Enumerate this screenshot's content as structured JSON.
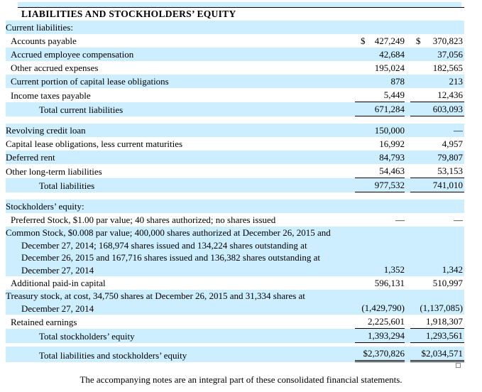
{
  "title": "LIABILITIES AND STOCKHOLDERS’ EQUITY",
  "footer": "The accompanying notes are an integral part of these consolidated financial statements.",
  "colors": {
    "stripe": "#cceeff",
    "rule": "#000000"
  },
  "rows": [
    {
      "kind": "section",
      "label": "Current liabilities:",
      "indent": 0,
      "bg": "blue"
    },
    {
      "kind": "item",
      "label": "Accounts payable",
      "indent": 1,
      "bg": "white",
      "d1": "$",
      "d2": "$",
      "v1": "427,249",
      "v2": "370,823"
    },
    {
      "kind": "item",
      "label": "Accrued employee compensation",
      "indent": 1,
      "bg": "blue",
      "v1": "42,684",
      "v2": "37,056"
    },
    {
      "kind": "item",
      "label": "Other accrued expenses",
      "indent": 1,
      "bg": "white",
      "v1": "195,024",
      "v2": "182,565"
    },
    {
      "kind": "item",
      "label": "Current portion of capital lease obligations",
      "indent": 1,
      "bg": "blue",
      "v1": "878",
      "v2": "213"
    },
    {
      "kind": "item",
      "label": "Income taxes payable",
      "indent": 1,
      "bg": "white",
      "v1": "5,449",
      "v2": "12,436",
      "rule": "single"
    },
    {
      "kind": "item",
      "label": "Total current liabilities",
      "indent": 2,
      "bg": "blue",
      "v1": "671,284",
      "v2": "603,093",
      "rule": "single"
    },
    {
      "kind": "spacer",
      "h": 10
    },
    {
      "kind": "item",
      "label": "Revolving credit loan",
      "indent": 0,
      "bg": "blue",
      "v1": "150,000",
      "v2": "—"
    },
    {
      "kind": "item",
      "label": "Capital lease obligations, less current maturities",
      "indent": 0,
      "bg": "white",
      "v1": "16,992",
      "v2": "4,957"
    },
    {
      "kind": "item",
      "label": "Deferred rent",
      "indent": 0,
      "bg": "blue",
      "v1": "84,793",
      "v2": "79,807"
    },
    {
      "kind": "item",
      "label": "Other long-term liabilities",
      "indent": 0,
      "bg": "white",
      "v1": "54,463",
      "v2": "53,153",
      "rule": "single"
    },
    {
      "kind": "item",
      "label": "Total liabilities",
      "indent": 2,
      "bg": "blue",
      "v1": "977,532",
      "v2": "741,010",
      "rule": "single"
    },
    {
      "kind": "spacer",
      "h": 10
    },
    {
      "kind": "section",
      "label": "Stockholders’ equity:",
      "indent": 0,
      "bg": "blue"
    },
    {
      "kind": "item",
      "label": "Preferred Stock, $1.00 par value; 40 shares authorized; no shares issued",
      "indent": 1,
      "bg": "white",
      "v1": "—",
      "v2": "—"
    },
    {
      "kind": "item",
      "indent": 0,
      "bg": "blue",
      "v1": "1,352",
      "v2": "1,342",
      "lines": [
        "Common Stock, $0.008 par value; 400,000 shares authorized at December 26, 2015 and",
        "December 27, 2014; 168,974 shares issued and 134,224 shares outstanding at",
        "December 26, 2015 and 167,716 shares issued and 136,382 shares outstanding at",
        "December 27, 2014"
      ]
    },
    {
      "kind": "item",
      "label": "Additional paid-in capital",
      "indent": 1,
      "bg": "white",
      "v1": "596,131",
      "v2": "510,997"
    },
    {
      "kind": "item",
      "indent": 0,
      "bg": "blue",
      "v1": "(1,429,790)",
      "v2": "(1,137,085)",
      "lines": [
        "Treasury stock, at cost, 34,750 shares at December 26, 2015 and 31,334 shares at",
        "December 27, 2014"
      ]
    },
    {
      "kind": "item",
      "label": "Retained earnings",
      "indent": 1,
      "bg": "white",
      "v1": "2,225,601",
      "v2": "1,918,307",
      "rule": "single"
    },
    {
      "kind": "item",
      "label": "Total stockholders’ equity",
      "indent": 2,
      "bg": "blue",
      "v1": "1,393,294",
      "v2": "1,293,561",
      "rule": "single"
    },
    {
      "kind": "spacer",
      "h": 5
    },
    {
      "kind": "item",
      "label": "Total liabilities  and stockholders’ equity",
      "indent": 2,
      "bg": "blue",
      "v1": "$2,370,826",
      "v2": "$2,034,571",
      "rule": "double"
    }
  ]
}
